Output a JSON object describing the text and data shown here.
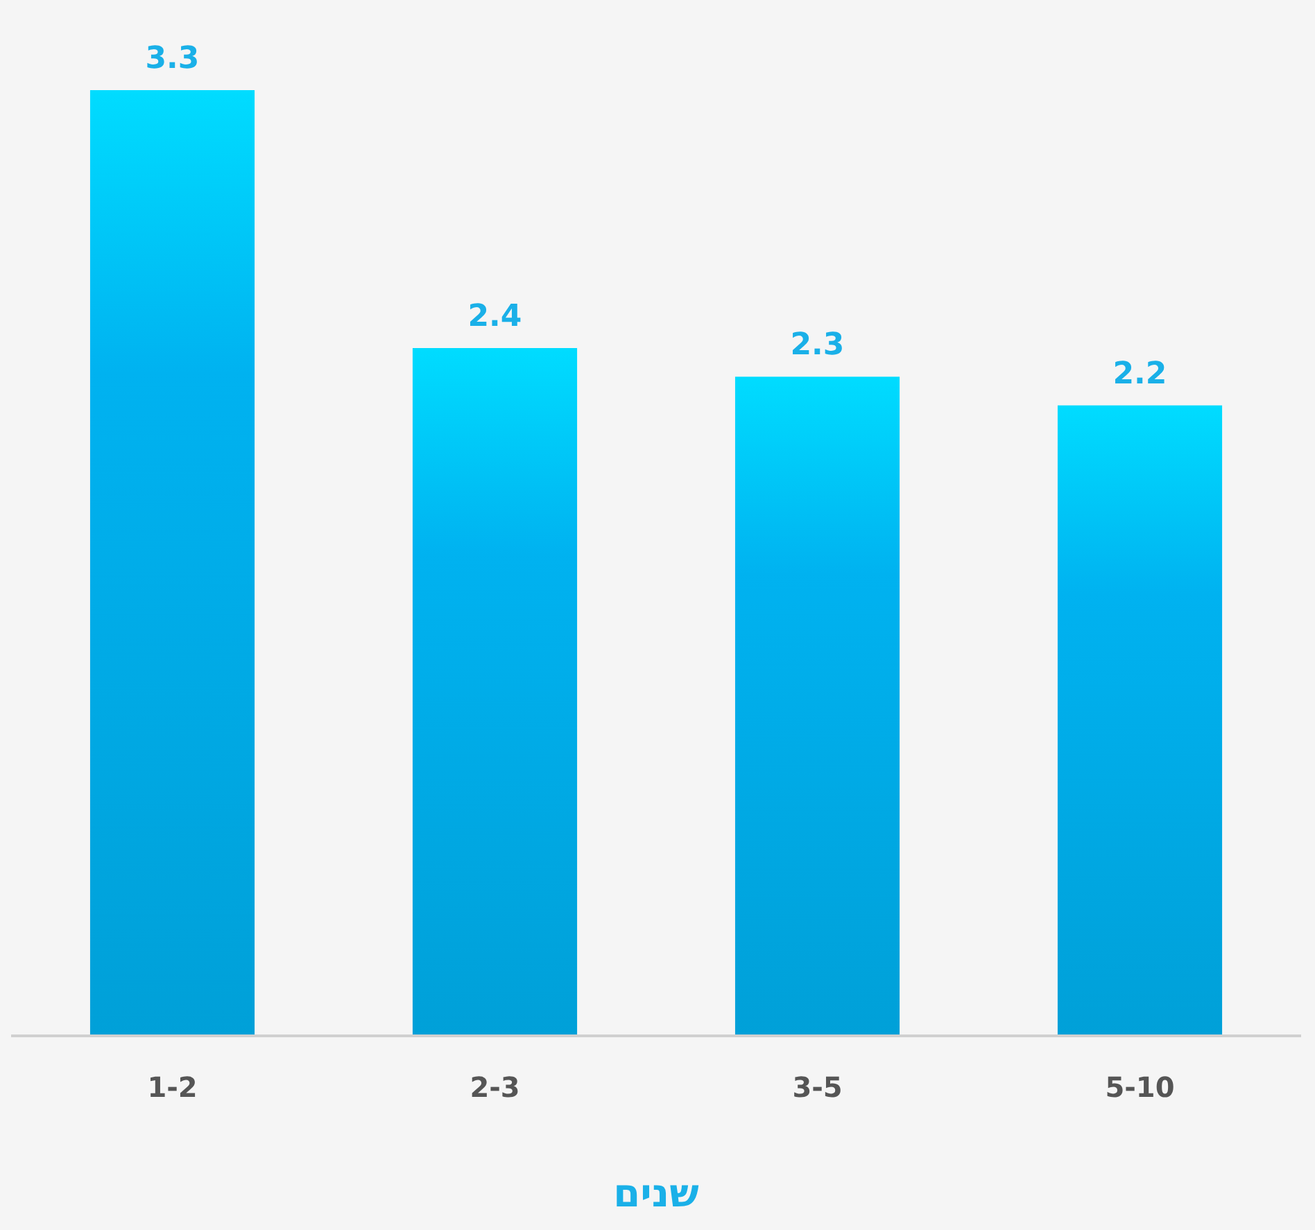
{
  "chart_data": {
    "type": "bar",
    "xlabel": "שנים",
    "categories": [
      "1-2",
      "2-3",
      "3-5",
      "5-10"
    ],
    "values": [
      3.3,
      2.4,
      2.3,
      2.2
    ],
    "color": "#00b2f0",
    "data_labels": true
  }
}
